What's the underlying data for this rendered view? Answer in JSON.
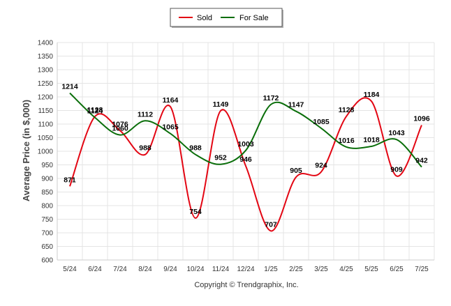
{
  "chart_data": {
    "type": "line",
    "title": "",
    "xlabel": "",
    "ylabel": "Average Price (in $,000)",
    "categories": [
      "5/24",
      "6/24",
      "7/24",
      "8/24",
      "9/24",
      "10/24",
      "11/24",
      "12/24",
      "1/25",
      "2/25",
      "3/25",
      "4/25",
      "5/25",
      "6/25",
      "7/25"
    ],
    "yticks": [
      600,
      650,
      700,
      750,
      800,
      850,
      900,
      950,
      1000,
      1050,
      1100,
      1150,
      1200,
      1250,
      1300,
      1350,
      1400
    ],
    "ylim": [
      600,
      1400
    ],
    "grid": true,
    "legend_placement": "top-center",
    "series": [
      {
        "name": "Sold",
        "color": "#e30613",
        "values": [
          871,
          1128,
          1076,
          988,
          1164,
          754,
          1149,
          946,
          707,
          905,
          924,
          1128,
          1184,
          909,
          1096
        ]
      },
      {
        "name": "For Sale",
        "color": "#0a6e0a",
        "values": [
          1214,
          1124,
          1060,
          1112,
          1065,
          988,
          952,
          1003,
          1172,
          1147,
          1085,
          1016,
          1018,
          1043,
          942
        ]
      }
    ],
    "footer": "Copyright © Trendgraphix, Inc."
  }
}
